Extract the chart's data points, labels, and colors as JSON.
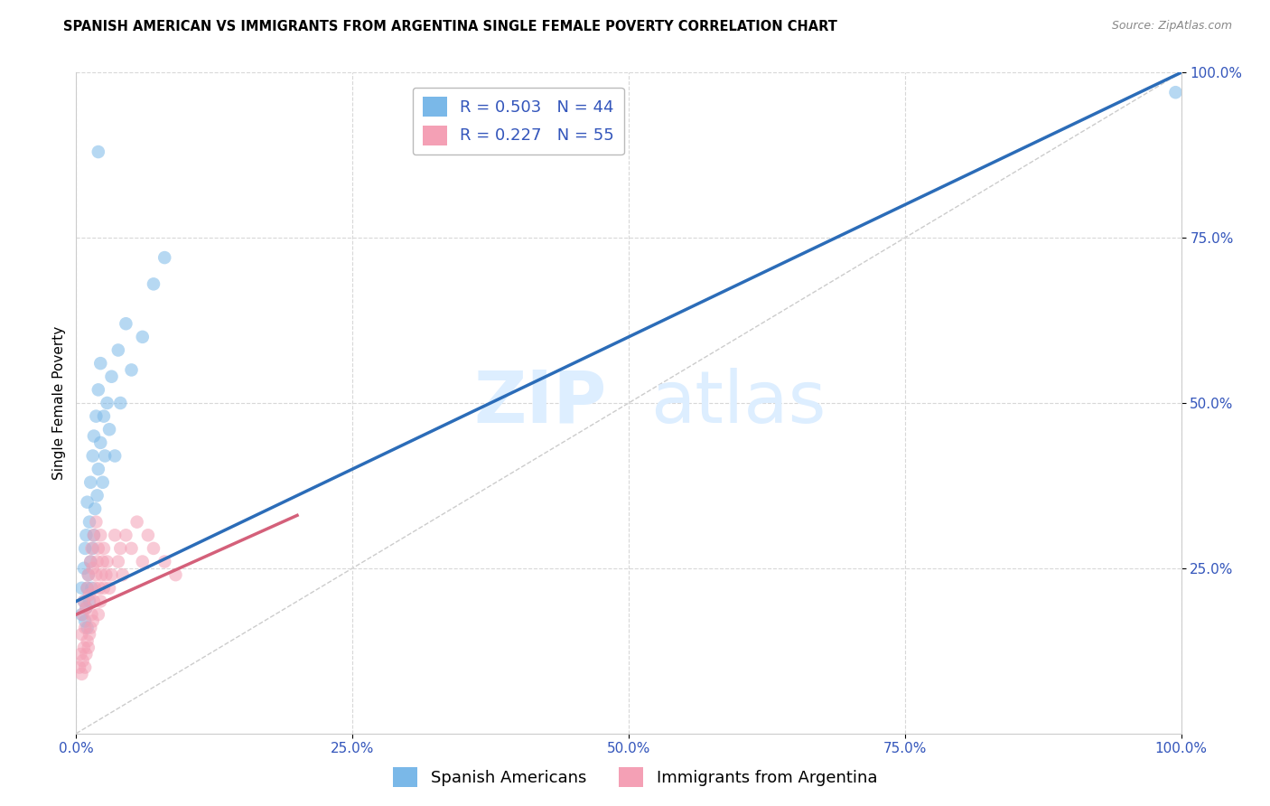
{
  "title": "SPANISH AMERICAN VS IMMIGRANTS FROM ARGENTINA SINGLE FEMALE POVERTY CORRELATION CHART",
  "source": "Source: ZipAtlas.com",
  "ylabel": "Single Female Poverty",
  "xlim": [
    0,
    1.0
  ],
  "ylim": [
    0,
    1.0
  ],
  "xticks": [
    0.0,
    0.25,
    0.5,
    0.75,
    1.0
  ],
  "xticklabels": [
    "0.0%",
    "25.0%",
    "50.0%",
    "75.0%",
    "100.0%"
  ],
  "yticks": [
    0.25,
    0.5,
    0.75,
    1.0
  ],
  "yticklabels": [
    "25.0%",
    "50.0%",
    "75.0%",
    "100.0%"
  ],
  "legend_row1": "R = 0.503   N = 44",
  "legend_row2": "R = 0.227   N = 55",
  "bottom_legend_blue": "Spanish Americans",
  "bottom_legend_pink": "Immigrants from Argentina",
  "blue_scatter_x": [
    0.005,
    0.005,
    0.007,
    0.007,
    0.008,
    0.008,
    0.009,
    0.009,
    0.01,
    0.01,
    0.01,
    0.011,
    0.012,
    0.012,
    0.013,
    0.013,
    0.014,
    0.015,
    0.015,
    0.016,
    0.016,
    0.017,
    0.018,
    0.019,
    0.02,
    0.02,
    0.022,
    0.022,
    0.024,
    0.025,
    0.026,
    0.028,
    0.03,
    0.032,
    0.035,
    0.038,
    0.04,
    0.045,
    0.05,
    0.06,
    0.07,
    0.08,
    0.02,
    0.995
  ],
  "blue_scatter_y": [
    0.18,
    0.22,
    0.2,
    0.25,
    0.17,
    0.28,
    0.19,
    0.3,
    0.16,
    0.22,
    0.35,
    0.24,
    0.2,
    0.32,
    0.26,
    0.38,
    0.22,
    0.28,
    0.42,
    0.3,
    0.45,
    0.34,
    0.48,
    0.36,
    0.4,
    0.52,
    0.44,
    0.56,
    0.38,
    0.48,
    0.42,
    0.5,
    0.46,
    0.54,
    0.42,
    0.58,
    0.5,
    0.62,
    0.55,
    0.6,
    0.68,
    0.72,
    0.88,
    0.97
  ],
  "pink_scatter_x": [
    0.003,
    0.004,
    0.005,
    0.005,
    0.006,
    0.006,
    0.007,
    0.007,
    0.008,
    0.008,
    0.009,
    0.009,
    0.01,
    0.01,
    0.011,
    0.011,
    0.012,
    0.012,
    0.013,
    0.013,
    0.014,
    0.014,
    0.015,
    0.015,
    0.016,
    0.016,
    0.017,
    0.018,
    0.018,
    0.019,
    0.02,
    0.02,
    0.021,
    0.022,
    0.022,
    0.023,
    0.024,
    0.025,
    0.025,
    0.027,
    0.028,
    0.03,
    0.032,
    0.035,
    0.038,
    0.04,
    0.042,
    0.045,
    0.05,
    0.055,
    0.06,
    0.065,
    0.07,
    0.08,
    0.09
  ],
  "pink_scatter_y": [
    0.1,
    0.12,
    0.09,
    0.15,
    0.11,
    0.18,
    0.13,
    0.2,
    0.1,
    0.16,
    0.12,
    0.19,
    0.14,
    0.22,
    0.13,
    0.24,
    0.15,
    0.21,
    0.16,
    0.26,
    0.18,
    0.28,
    0.17,
    0.25,
    0.2,
    0.3,
    0.22,
    0.24,
    0.32,
    0.26,
    0.18,
    0.28,
    0.22,
    0.2,
    0.3,
    0.24,
    0.26,
    0.22,
    0.28,
    0.24,
    0.26,
    0.22,
    0.24,
    0.3,
    0.26,
    0.28,
    0.24,
    0.3,
    0.28,
    0.32,
    0.26,
    0.3,
    0.28,
    0.26,
    0.24
  ],
  "blue_line_x": [
    0.0,
    1.0
  ],
  "blue_line_y": [
    0.2,
    1.0
  ],
  "pink_line_x": [
    0.0,
    0.2
  ],
  "pink_line_y": [
    0.18,
    0.33
  ],
  "diag_line_x": [
    0.0,
    1.0
  ],
  "diag_line_y": [
    0.0,
    1.0
  ],
  "scatter_alpha": 0.55,
  "scatter_size": 110,
  "blue_color": "#7ab8e8",
  "pink_color": "#f4a0b5",
  "blue_line_color": "#2b6cb8",
  "pink_line_color": "#d4607a",
  "diag_line_color": "#cccccc",
  "background_color": "#ffffff",
  "grid_color": "#d8d8d8",
  "title_fontsize": 10.5,
  "source_fontsize": 9,
  "axis_label_fontsize": 11,
  "tick_fontsize": 11,
  "legend_fontsize": 13,
  "watermark_zip": "ZIP",
  "watermark_atlas": "atlas",
  "watermark_color": "#ddeeff",
  "watermark_fontsize": 58
}
